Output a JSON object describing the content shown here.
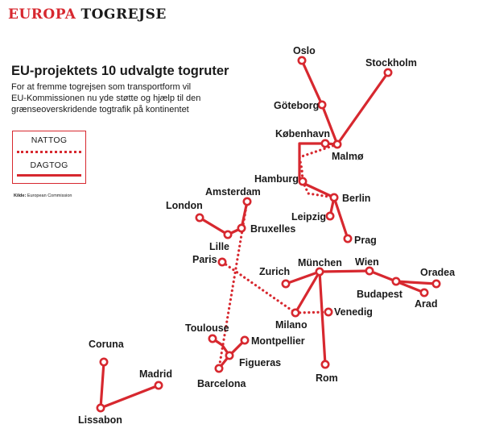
{
  "brand": {
    "part1": "EUROPA",
    "part2": "TOGREJSE"
  },
  "title": "EU-projektets 10 udvalgte togruter",
  "intro": [
    "For at fremme togrejsen som transportform vil",
    "EU-Kommissionen nu yde støtte og hjælp til den",
    "grænseoverskridende togtrafik på kontinentet"
  ],
  "legend": {
    "night": "NATTOG",
    "day": "DAGTOG"
  },
  "source": {
    "label": "Kilde:",
    "text": "European Commission"
  },
  "colors": {
    "route": "#d7282f",
    "text": "#1a1a1a"
  },
  "cities": {
    "oslo": "Oslo",
    "stockholm": "Stockholm",
    "goteborg": "Göteborg",
    "kobenhavn": "København",
    "malmo": "Malmø",
    "hamburg": "Hamburg",
    "berlin": "Berlin",
    "leipzig": "Leipzig",
    "prag": "Prag",
    "amsterdam": "Amsterdam",
    "london": "London",
    "bruxelles": "Bruxelles",
    "lille": "Lille",
    "paris": "Paris",
    "zurich": "Zurich",
    "munchen": "München",
    "wien": "Wien",
    "oradea": "Oradea",
    "budapest": "Budapest",
    "arad": "Arad",
    "venedig": "Venedig",
    "milano": "Milano",
    "toulouse": "Toulouse",
    "montpellier": "Montpellier",
    "figueras": "Figueras",
    "barcelona": "Barcelona",
    "rom": "Rom",
    "coruna": "Coruna",
    "madrid": "Madrid",
    "lissabon": "Lissabon"
  }
}
